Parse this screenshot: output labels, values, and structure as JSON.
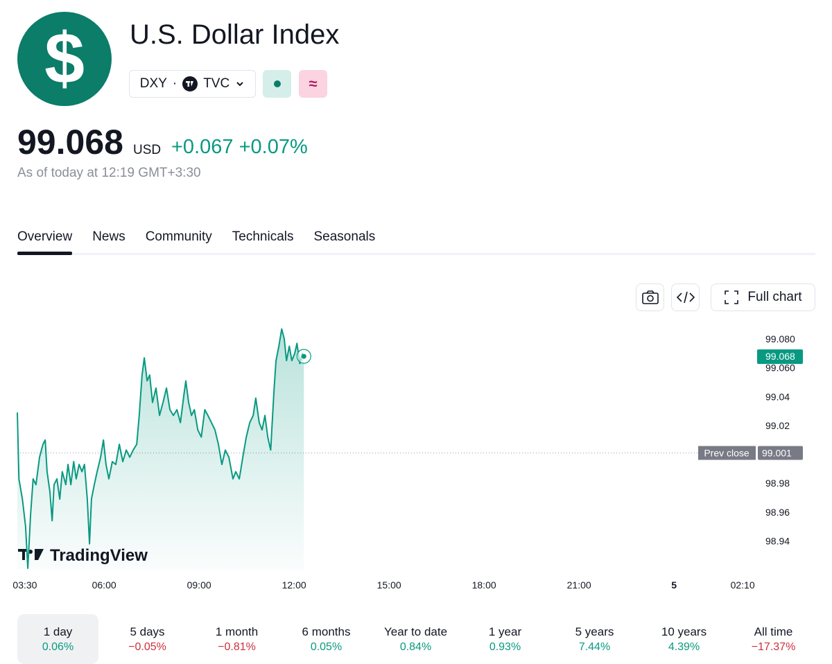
{
  "header": {
    "logo": "$",
    "title": "U.S. Dollar Index",
    "symbol": "DXY",
    "separator": "·",
    "exchange": "TVC",
    "delay_badge": "≈",
    "price": "99.068",
    "currency": "USD",
    "change": "+0.067",
    "change_percent": "+0.07%",
    "as_of": "As of today at 12:19 GMT+3:30"
  },
  "tabs": [
    "Overview",
    "News",
    "Community",
    "Technicals",
    "Seasonals"
  ],
  "active_tab": 0,
  "toolbar": {
    "full_chart": "Full chart"
  },
  "chart_data": {
    "type": "line",
    "watermark": "TradingView",
    "x": [
      3.26,
      3.31,
      3.42,
      3.52,
      3.59,
      3.68,
      3.76,
      3.85,
      3.96,
      4.07,
      4.14,
      4.2,
      4.29,
      4.36,
      4.42,
      4.51,
      4.6,
      4.68,
      4.79,
      4.86,
      4.95,
      5.04,
      5.12,
      5.21,
      5.3,
      5.38,
      5.47,
      5.54,
      5.6,
      5.69,
      5.78,
      5.89,
      5.98,
      6.06,
      6.15,
      6.26,
      6.37,
      6.48,
      6.59,
      6.7,
      6.81,
      6.92,
      7.03,
      7.11,
      7.2,
      7.27,
      7.36,
      7.44,
      7.53,
      7.64,
      7.75,
      7.86,
      7.97,
      8.08,
      8.19,
      8.3,
      8.41,
      8.52,
      8.58,
      8.67,
      8.76,
      8.85,
      8.96,
      9.07,
      9.18,
      9.28,
      9.39,
      9.5,
      9.61,
      9.72,
      9.83,
      9.94,
      10.07,
      10.16,
      10.27,
      10.38,
      10.49,
      10.6,
      10.71,
      10.79,
      10.9,
      10.99,
      11.08,
      11.17,
      11.26,
      11.37,
      11.43,
      11.52,
      11.61,
      11.69,
      11.76,
      11.85,
      11.93,
      12.02,
      12.09,
      12.18,
      12.26,
      12.31
    ],
    "series": [
      {
        "color": "#089981",
        "values": [
          99.029,
          98.983,
          98.969,
          98.95,
          98.921,
          98.959,
          98.983,
          98.979,
          98.998,
          99.007,
          99.01,
          98.988,
          98.974,
          98.954,
          98.979,
          98.983,
          98.969,
          98.988,
          98.979,
          98.993,
          98.979,
          98.995,
          98.983,
          98.993,
          98.988,
          98.993,
          98.969,
          98.938,
          98.969,
          98.979,
          98.988,
          98.998,
          99.01,
          98.993,
          98.983,
          98.995,
          98.993,
          99.007,
          98.995,
          99.003,
          98.998,
          99.003,
          99.007,
          99.027,
          99.055,
          99.067,
          99.051,
          99.055,
          99.036,
          99.046,
          99.027,
          99.036,
          99.046,
          99.031,
          99.027,
          99.031,
          99.022,
          99.041,
          99.051,
          99.036,
          99.027,
          99.031,
          99.017,
          99.012,
          99.031,
          99.027,
          99.022,
          99.017,
          99.007,
          98.993,
          99.003,
          98.998,
          98.983,
          98.988,
          98.983,
          98.998,
          99.012,
          99.022,
          99.027,
          99.039,
          99.022,
          99.017,
          99.027,
          99.012,
          99.003,
          99.046,
          99.065,
          99.075,
          99.087,
          99.08,
          99.065,
          99.075,
          99.065,
          99.07,
          99.077,
          99.063,
          99.07,
          99.068
        ]
      }
    ],
    "xlim": [
      3.26,
      26.58
    ],
    "xticks": [
      {
        "value": 3.5,
        "label": "03:30"
      },
      {
        "value": 6,
        "label": "06:00"
      },
      {
        "value": 9,
        "label": "09:00"
      },
      {
        "value": 12,
        "label": "12:00"
      },
      {
        "value": 15,
        "label": "15:00"
      },
      {
        "value": 18,
        "label": "18:00"
      },
      {
        "value": 21,
        "label": "21:00"
      },
      {
        "value": 24,
        "label": "5"
      },
      {
        "value": 26.1667,
        "label": "02:10"
      }
    ],
    "ylim": [
      98.92,
      99.094
    ],
    "yticks": [
      {
        "value": 99.08,
        "label": "99.080"
      },
      {
        "value": 99.06,
        "label": "99.060"
      },
      99.04,
      99.02,
      98.98,
      98.96,
      98.94
    ],
    "grid": false,
    "last_price": 99.068,
    "prev_close": {
      "label": "Prev close",
      "value": 99.001
    }
  },
  "periods": [
    {
      "label": "1 day",
      "change": "0.06%",
      "color": "#089981"
    },
    {
      "label": "5 days",
      "change": "−0.05%",
      "color": "#cc2f3c"
    },
    {
      "label": "1 month",
      "change": "−0.81%",
      "color": "#cc2f3c"
    },
    {
      "label": "6 months",
      "change": "0.05%",
      "color": "#089981"
    },
    {
      "label": "Year to date",
      "change": "0.84%",
      "color": "#089981"
    },
    {
      "label": "1 year",
      "change": "0.93%",
      "color": "#089981"
    },
    {
      "label": "5 years",
      "change": "7.44%",
      "color": "#089981"
    },
    {
      "label": "10 years",
      "change": "4.39%",
      "color": "#089981"
    },
    {
      "label": "All time",
      "change": "−17.37%",
      "color": "#cc2f3c"
    }
  ]
}
